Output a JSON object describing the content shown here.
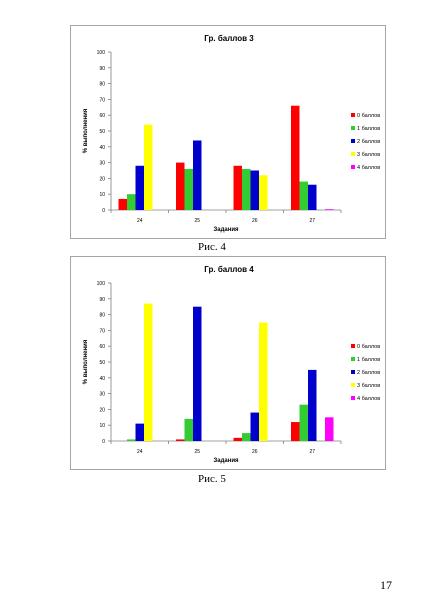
{
  "page": {
    "captions": [
      "Рис. 4",
      "Рис. 5"
    ],
    "page_number": "17"
  },
  "chart_data": [
    {
      "type": "bar",
      "title": "Гр. баллов 3",
      "xlabel": "Задания",
      "ylabel": "% выполнения",
      "ylim": [
        0,
        100
      ],
      "yticks": [
        0,
        10,
        20,
        30,
        40,
        50,
        60,
        70,
        80,
        90,
        100
      ],
      "grid": false,
      "legend_position": "right",
      "categories": [
        "24",
        "25",
        "26",
        "27"
      ],
      "series": [
        {
          "name": "0 баллов",
          "color": "#ff0000",
          "values": [
            7,
            30,
            28,
            66
          ]
        },
        {
          "name": "1 баллов",
          "color": "#33cc33",
          "values": [
            10,
            26,
            26,
            18
          ]
        },
        {
          "name": "2 баллов",
          "color": "#0000cc",
          "values": [
            28,
            44,
            25,
            16
          ]
        },
        {
          "name": "3 баллов",
          "color": "#ffff00",
          "values": [
            54,
            0,
            22,
            0
          ]
        },
        {
          "name": "4 баллов",
          "color": "#ff00ff",
          "values": [
            0,
            0,
            0,
            0.5
          ]
        }
      ]
    },
    {
      "type": "bar",
      "title": "Гр. баллов 4",
      "xlabel": "Задания",
      "ylabel": "% выполнения",
      "ylim": [
        0,
        100
      ],
      "yticks": [
        0,
        10,
        20,
        30,
        40,
        50,
        60,
        70,
        80,
        90,
        100
      ],
      "grid": false,
      "legend_position": "right",
      "categories": [
        "24",
        "25",
        "26",
        "27"
      ],
      "series": [
        {
          "name": "0 баллов",
          "color": "#ff0000",
          "values": [
            0,
            1,
            2,
            12
          ]
        },
        {
          "name": "1 баллов",
          "color": "#33cc33",
          "values": [
            1,
            14,
            5,
            23
          ]
        },
        {
          "name": "2 баллов",
          "color": "#0000cc",
          "values": [
            11,
            85,
            18,
            45
          ]
        },
        {
          "name": "3 баллов",
          "color": "#ffff00",
          "values": [
            87,
            0,
            75,
            0
          ]
        },
        {
          "name": "4 баллов",
          "color": "#ff00ff",
          "values": [
            0,
            0,
            0,
            15
          ]
        }
      ]
    }
  ]
}
